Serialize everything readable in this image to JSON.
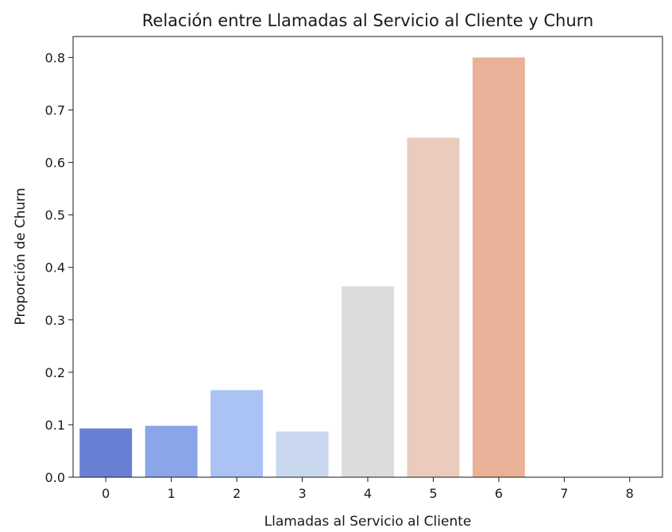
{
  "chart_data": {
    "type": "bar",
    "title": "Relación entre Llamadas al Servicio al Cliente y Churn",
    "xlabel": "Llamadas al Servicio al Cliente",
    "ylabel": "Proporción de Churn",
    "categories": [
      "0",
      "1",
      "2",
      "3",
      "4",
      "5",
      "6",
      "7",
      "8"
    ],
    "values": [
      0.093,
      0.098,
      0.166,
      0.087,
      0.364,
      0.647,
      0.8,
      0.0,
      0.0
    ],
    "colors": [
      "#6880d4",
      "#8aa6e9",
      "#aac3f4",
      "#c9d7ef",
      "#dcdcdc",
      "#eacbbd",
      "#eab199",
      "#c0c0c0",
      "#c0c0c0"
    ],
    "ylim": [
      0,
      0.84
    ],
    "yticks": [
      0.0,
      0.1,
      0.2,
      0.3,
      0.4,
      0.5,
      0.6,
      0.7,
      0.8
    ],
    "ytick_labels": [
      "0.0",
      "0.1",
      "0.2",
      "0.3",
      "0.4",
      "0.5",
      "0.6",
      "0.7",
      "0.8"
    ],
    "grid": false,
    "legend": "none"
  }
}
